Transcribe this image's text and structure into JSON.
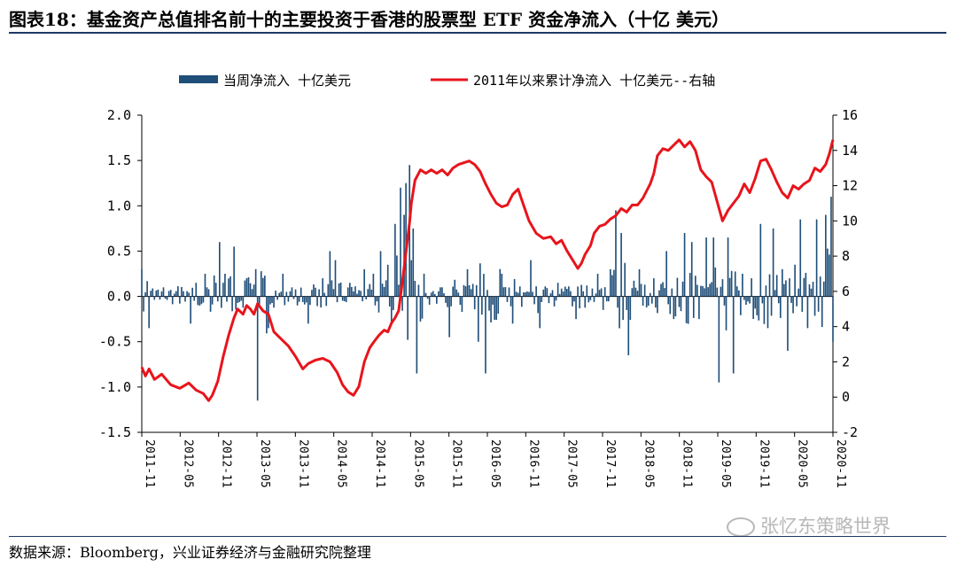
{
  "figure_title": "图表18：基金资产总值排名前十的主要投资于香港的股票型 ETF 资金净流入（十亿 美元）",
  "source_note": "数据来源：Bloomberg，兴业证券经济与金融研究院整理",
  "watermark": "张忆东策略世界",
  "colors": {
    "bars": "#1f4e79",
    "line": "#e8141b",
    "rule": "#1f3864"
  },
  "chart_data": {
    "type": "bar+line",
    "title": "",
    "legend": [
      {
        "name": "当周净流入  十亿美元",
        "mark": "bar"
      },
      {
        "name": "2011年以来累计净流入  十亿美元--右轴",
        "mark": "line"
      }
    ],
    "legend_position": "top",
    "y_left": {
      "range": [
        -1.5,
        2.0
      ],
      "ticks": [
        "2.0",
        "1.5",
        "1.0",
        "0.5",
        "0.0",
        "-0.5",
        "-1.0",
        "-1.5"
      ]
    },
    "y_right": {
      "range": [
        -2,
        16
      ],
      "ticks": [
        "16",
        "14",
        "12",
        "10",
        "8",
        "6",
        "4",
        "2",
        "0",
        "-2"
      ]
    },
    "x_ticks": [
      "2011-11",
      "2012-05",
      "2012-11",
      "2013-05",
      "2013-11",
      "2014-05",
      "2014-11",
      "2015-05",
      "2015-11",
      "2016-05",
      "2016-11",
      "2017-05",
      "2017-11",
      "2018-05",
      "2018-11",
      "2019-05",
      "2019-11",
      "2020-05",
      "2020-11"
    ],
    "weekly_flow_anchors": [
      {
        "week": 0,
        "value": 0.3
      },
      {
        "week": 4,
        "value": -0.35
      },
      {
        "week": 12,
        "value": 0.1
      },
      {
        "week": 27,
        "value": -0.3
      },
      {
        "week": 30,
        "value": 0.15
      },
      {
        "week": 35,
        "value": 0.25
      },
      {
        "week": 43,
        "value": 0.6
      },
      {
        "week": 46,
        "value": 0.25
      },
      {
        "week": 51,
        "value": 0.55
      },
      {
        "week": 58,
        "value": 0.2
      },
      {
        "week": 64,
        "value": -1.15
      },
      {
        "week": 70,
        "value": -0.35
      },
      {
        "week": 78,
        "value": 0.25
      },
      {
        "week": 83,
        "value": 0.1
      },
      {
        "week": 92,
        "value": -0.3
      },
      {
        "week": 100,
        "value": 0.2
      },
      {
        "week": 104,
        "value": 0.5
      },
      {
        "week": 107,
        "value": 0.4
      },
      {
        "week": 115,
        "value": 0.15
      },
      {
        "week": 123,
        "value": 0.3
      },
      {
        "week": 128,
        "value": 0.25
      },
      {
        "week": 132,
        "value": 0.5
      },
      {
        "week": 136,
        "value": 0.35
      },
      {
        "week": 140,
        "value": 0.8
      },
      {
        "week": 143,
        "value": 1.2
      },
      {
        "week": 145,
        "value": 0.9
      },
      {
        "week": 146,
        "value": 1.25
      },
      {
        "week": 148,
        "value": 1.45
      },
      {
        "week": 149,
        "value": 0.4
      },
      {
        "week": 150,
        "value": 0.75
      },
      {
        "week": 152,
        "value": -0.85
      },
      {
        "week": 156,
        "value": 0.25
      },
      {
        "week": 165,
        "value": 0.1
      },
      {
        "week": 170,
        "value": -0.45
      },
      {
        "week": 180,
        "value": 0.3
      },
      {
        "week": 186,
        "value": -0.5
      },
      {
        "week": 190,
        "value": -0.85
      },
      {
        "week": 199,
        "value": 0.25
      },
      {
        "week": 205,
        "value": -0.3
      },
      {
        "week": 215,
        "value": 0.4
      },
      {
        "week": 220,
        "value": -0.35
      },
      {
        "week": 230,
        "value": 0.15
      },
      {
        "week": 240,
        "value": -0.25
      },
      {
        "week": 252,
        "value": 0.25
      },
      {
        "week": 259,
        "value": 0.3
      },
      {
        "week": 262,
        "value": 0.95
      },
      {
        "week": 265,
        "value": 0.7
      },
      {
        "week": 269,
        "value": -0.65
      },
      {
        "week": 275,
        "value": 0.3
      },
      {
        "week": 283,
        "value": 0.2
      },
      {
        "week": 290,
        "value": 0.5
      },
      {
        "week": 294,
        "value": -0.25
      },
      {
        "week": 300,
        "value": 0.7
      },
      {
        "week": 304,
        "value": 0.6
      },
      {
        "week": 308,
        "value": -0.25
      },
      {
        "week": 312,
        "value": 0.65
      },
      {
        "week": 316,
        "value": 0.65
      },
      {
        "week": 319,
        "value": -0.95
      },
      {
        "week": 324,
        "value": 0.65
      },
      {
        "week": 327,
        "value": -0.85
      },
      {
        "week": 332,
        "value": 0.25
      },
      {
        "week": 337,
        "value": 0.2
      },
      {
        "week": 342,
        "value": 0.8
      },
      {
        "week": 346,
        "value": -0.35
      },
      {
        "week": 349,
        "value": 0.75
      },
      {
        "week": 354,
        "value": 0.3
      },
      {
        "week": 357,
        "value": -0.6
      },
      {
        "week": 361,
        "value": 0.35
      },
      {
        "week": 364,
        "value": 0.85
      },
      {
        "week": 368,
        "value": -0.35
      },
      {
        "week": 373,
        "value": 0.85
      },
      {
        "week": 378,
        "value": 0.9
      },
      {
        "week": 381,
        "value": 1.1
      },
      {
        "week": 382,
        "value": -0.5
      }
    ],
    "cumulative_flow": [
      {
        "week": 0,
        "value": 1.7
      },
      {
        "week": 2,
        "value": 1.2
      },
      {
        "week": 4,
        "value": 1.6
      },
      {
        "week": 7,
        "value": 1.0
      },
      {
        "week": 11,
        "value": 1.3
      },
      {
        "week": 16,
        "value": 0.7
      },
      {
        "week": 21,
        "value": 0.5
      },
      {
        "week": 26,
        "value": 0.8
      },
      {
        "week": 30,
        "value": 0.4
      },
      {
        "week": 34,
        "value": 0.2
      },
      {
        "week": 37,
        "value": -0.2
      },
      {
        "week": 39,
        "value": 0.1
      },
      {
        "week": 42,
        "value": 0.9
      },
      {
        "week": 45,
        "value": 2.3
      },
      {
        "week": 48,
        "value": 3.5
      },
      {
        "week": 51,
        "value": 4.5
      },
      {
        "week": 53,
        "value": 5.0
      },
      {
        "week": 56,
        "value": 4.7
      },
      {
        "week": 58,
        "value": 5.2
      },
      {
        "week": 60,
        "value": 5.0
      },
      {
        "week": 62,
        "value": 4.7
      },
      {
        "week": 64,
        "value": 5.3
      },
      {
        "week": 67,
        "value": 4.9
      },
      {
        "week": 70,
        "value": 4.7
      },
      {
        "week": 73,
        "value": 3.7
      },
      {
        "week": 78,
        "value": 3.2
      },
      {
        "week": 81,
        "value": 2.9
      },
      {
        "week": 85,
        "value": 2.3
      },
      {
        "week": 89,
        "value": 1.6
      },
      {
        "week": 92,
        "value": 1.9
      },
      {
        "week": 96,
        "value": 2.1
      },
      {
        "week": 100,
        "value": 2.2
      },
      {
        "week": 104,
        "value": 2.0
      },
      {
        "week": 108,
        "value": 1.4
      },
      {
        "week": 111,
        "value": 0.7
      },
      {
        "week": 114,
        "value": 0.3
      },
      {
        "week": 117,
        "value": 0.1
      },
      {
        "week": 120,
        "value": 0.6
      },
      {
        "week": 123,
        "value": 2.0
      },
      {
        "week": 126,
        "value": 2.8
      },
      {
        "week": 128,
        "value": 3.1
      },
      {
        "week": 131,
        "value": 3.5
      },
      {
        "week": 134,
        "value": 3.8
      },
      {
        "week": 136,
        "value": 3.7
      },
      {
        "week": 138,
        "value": 4.2
      },
      {
        "week": 140,
        "value": 4.5
      },
      {
        "week": 142,
        "value": 4.9
      },
      {
        "week": 144,
        "value": 6.5
      },
      {
        "week": 146,
        "value": 8.2
      },
      {
        "week": 148,
        "value": 9.9
      },
      {
        "week": 149,
        "value": 11.0
      },
      {
        "week": 151,
        "value": 12.3
      },
      {
        "week": 154,
        "value": 12.9
      },
      {
        "week": 157,
        "value": 12.7
      },
      {
        "week": 160,
        "value": 12.9
      },
      {
        "week": 163,
        "value": 12.7
      },
      {
        "week": 166,
        "value": 12.9
      },
      {
        "week": 169,
        "value": 12.6
      },
      {
        "week": 172,
        "value": 13.0
      },
      {
        "week": 175,
        "value": 13.2
      },
      {
        "week": 178,
        "value": 13.3
      },
      {
        "week": 181,
        "value": 13.4
      },
      {
        "week": 184,
        "value": 13.2
      },
      {
        "week": 187,
        "value": 12.8
      },
      {
        "week": 190,
        "value": 12.1
      },
      {
        "week": 193,
        "value": 11.5
      },
      {
        "week": 196,
        "value": 11.0
      },
      {
        "week": 199,
        "value": 10.8
      },
      {
        "week": 202,
        "value": 10.9
      },
      {
        "week": 205,
        "value": 11.5
      },
      {
        "week": 208,
        "value": 11.8
      },
      {
        "week": 211,
        "value": 10.9
      },
      {
        "week": 214,
        "value": 10.0
      },
      {
        "week": 218,
        "value": 9.3
      },
      {
        "week": 222,
        "value": 9.0
      },
      {
        "week": 226,
        "value": 9.1
      },
      {
        "week": 229,
        "value": 8.7
      },
      {
        "week": 232,
        "value": 8.9
      },
      {
        "week": 235,
        "value": 8.3
      },
      {
        "week": 238,
        "value": 7.8
      },
      {
        "week": 241,
        "value": 7.3
      },
      {
        "week": 243,
        "value": 7.6
      },
      {
        "week": 245,
        "value": 8.1
      },
      {
        "week": 248,
        "value": 8.6
      },
      {
        "week": 250,
        "value": 9.3
      },
      {
        "week": 253,
        "value": 9.7
      },
      {
        "week": 256,
        "value": 9.8
      },
      {
        "week": 259,
        "value": 10.1
      },
      {
        "week": 262,
        "value": 10.3
      },
      {
        "week": 265,
        "value": 10.7
      },
      {
        "week": 268,
        "value": 10.5
      },
      {
        "week": 271,
        "value": 10.9
      },
      {
        "week": 274,
        "value": 10.9
      },
      {
        "week": 277,
        "value": 11.3
      },
      {
        "week": 279,
        "value": 11.7
      },
      {
        "week": 281,
        "value": 12.1
      },
      {
        "week": 283,
        "value": 12.7
      },
      {
        "week": 285,
        "value": 13.7
      },
      {
        "week": 288,
        "value": 14.1
      },
      {
        "week": 291,
        "value": 14.0
      },
      {
        "week": 294,
        "value": 14.3
      },
      {
        "week": 297,
        "value": 14.6
      },
      {
        "week": 300,
        "value": 14.2
      },
      {
        "week": 303,
        "value": 14.5
      },
      {
        "week": 306,
        "value": 14.0
      },
      {
        "week": 309,
        "value": 12.9
      },
      {
        "week": 312,
        "value": 12.5
      },
      {
        "week": 315,
        "value": 12.2
      },
      {
        "week": 318,
        "value": 11.1
      },
      {
        "week": 321,
        "value": 10.0
      },
      {
        "week": 324,
        "value": 10.6
      },
      {
        "week": 327,
        "value": 11.0
      },
      {
        "week": 330,
        "value": 11.4
      },
      {
        "week": 333,
        "value": 12.1
      },
      {
        "week": 336,
        "value": 11.6
      },
      {
        "week": 339,
        "value": 12.4
      },
      {
        "week": 342,
        "value": 13.4
      },
      {
        "week": 345,
        "value": 13.5
      },
      {
        "week": 348,
        "value": 12.9
      },
      {
        "week": 351,
        "value": 12.2
      },
      {
        "week": 354,
        "value": 11.6
      },
      {
        "week": 357,
        "value": 11.3
      },
      {
        "week": 360,
        "value": 12.0
      },
      {
        "week": 363,
        "value": 11.8
      },
      {
        "week": 366,
        "value": 12.1
      },
      {
        "week": 369,
        "value": 12.3
      },
      {
        "week": 372,
        "value": 13.0
      },
      {
        "week": 375,
        "value": 12.8
      },
      {
        "week": 378,
        "value": 13.2
      },
      {
        "week": 380,
        "value": 13.8
      },
      {
        "week": 382,
        "value": 14.6
      }
    ]
  }
}
